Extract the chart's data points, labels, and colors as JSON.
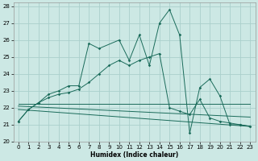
{
  "xlabel": "Humidex (Indice chaleur)",
  "bg_color": "#cce8e4",
  "grid_color": "#aad0cc",
  "line_color": "#1a6b5a",
  "xlim": [
    -0.5,
    23.5
  ],
  "ylim": [
    20,
    28.2
  ],
  "xticks": [
    0,
    1,
    2,
    3,
    4,
    5,
    6,
    7,
    8,
    9,
    10,
    11,
    12,
    13,
    14,
    15,
    16,
    17,
    18,
    19,
    20,
    21,
    22,
    23
  ],
  "yticks": [
    20,
    21,
    22,
    23,
    24,
    25,
    26,
    27,
    28
  ],
  "curve1_x": [
    0,
    1,
    2,
    3,
    4,
    5,
    6,
    7,
    8,
    10,
    11,
    12,
    13,
    14,
    15,
    16,
    17,
    18,
    19,
    20,
    21,
    22,
    23
  ],
  "curve1_y": [
    21.2,
    21.9,
    22.3,
    22.8,
    23.0,
    23.3,
    23.3,
    25.8,
    25.5,
    26.0,
    24.8,
    26.3,
    24.5,
    27.0,
    27.8,
    26.3,
    20.5,
    23.2,
    23.7,
    22.7,
    21.0,
    21.0,
    20.9
  ],
  "curve2_x": [
    0,
    1,
    2,
    3,
    4,
    5,
    6,
    7,
    8,
    9,
    10,
    11,
    12,
    13,
    14,
    15,
    16,
    17,
    18,
    19,
    20,
    21,
    22,
    23
  ],
  "curve2_y": [
    21.2,
    21.9,
    22.3,
    22.6,
    22.8,
    22.9,
    23.1,
    23.5,
    24.0,
    24.5,
    24.8,
    24.5,
    24.8,
    25.0,
    25.2,
    22.0,
    21.8,
    21.6,
    22.5,
    21.4,
    21.2,
    21.1,
    21.0,
    20.9
  ],
  "trend1_x": [
    0,
    23
  ],
  "trend1_y": [
    22.25,
    22.25
  ],
  "trend2_x": [
    0,
    23
  ],
  "trend2_y": [
    22.1,
    21.45
  ],
  "trend3_x": [
    0,
    23
  ],
  "trend3_y": [
    21.9,
    20.9
  ]
}
